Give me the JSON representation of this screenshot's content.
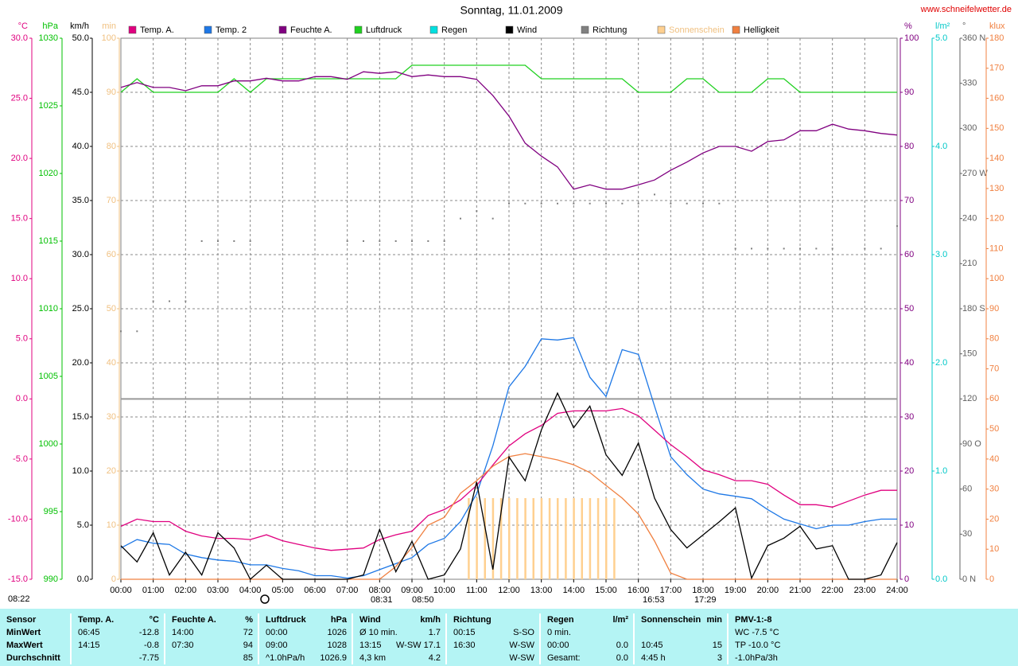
{
  "chart_data": {
    "type": "line",
    "title": "Sonntag, 11.01.2009",
    "source": "www.schneifelwetter.de",
    "grid": true,
    "xlim": [
      0,
      24
    ],
    "xticks": [
      {
        "value": 0,
        "label": "00:00"
      },
      {
        "value": 1,
        "label": "01:00"
      },
      {
        "value": 2,
        "label": "02:00"
      },
      {
        "value": 3,
        "label": "03:00"
      },
      {
        "value": 4,
        "label": "04:00"
      },
      {
        "value": 5,
        "label": "05:00"
      },
      {
        "value": 6,
        "label": "06:00"
      },
      {
        "value": 7,
        "label": "07:00"
      },
      {
        "value": 8,
        "label": "08:00"
      },
      {
        "value": 9,
        "label": "09:00"
      },
      {
        "value": 10,
        "label": "10:00"
      },
      {
        "value": 11,
        "label": "11:00"
      },
      {
        "value": 12,
        "label": "12:00"
      },
      {
        "value": 13,
        "label": "13:00"
      },
      {
        "value": 14,
        "label": "14:00"
      },
      {
        "value": 15,
        "label": "15:00"
      },
      {
        "value": 16,
        "label": "16:00"
      },
      {
        "value": 17,
        "label": "17:00"
      },
      {
        "value": 18,
        "label": "18:00"
      },
      {
        "value": 19,
        "label": "19:00"
      },
      {
        "value": 20,
        "label": "20:00"
      },
      {
        "value": 21,
        "label": "21:00"
      },
      {
        "value": 22,
        "label": "22:00"
      },
      {
        "value": 23,
        "label": "23:00"
      },
      {
        "value": 24,
        "label": "24:00"
      }
    ],
    "annotations": [
      "08:22",
      "08:31",
      "08:50",
      "16:53",
      "17:29"
    ],
    "axes": [
      {
        "label": "°C",
        "color": "#e0007f",
        "lim": [
          -15,
          30
        ],
        "zeroline": true,
        "ticks": [
          {
            "value": 30,
            "label": "30.0"
          },
          {
            "value": 25,
            "label": "25.0"
          },
          {
            "value": 20,
            "label": "20.0"
          },
          {
            "value": 15,
            "label": "15.0"
          },
          {
            "value": 10,
            "label": "10.0"
          },
          {
            "value": 5,
            "label": "5.0"
          },
          {
            "value": 0,
            "label": "0.0"
          },
          {
            "value": -5,
            "label": "-5.0"
          },
          {
            "value": -10,
            "label": "-10.0"
          },
          {
            "value": -15,
            "label": "-15.0"
          }
        ]
      },
      {
        "label": "hPa",
        "color": "#00c000",
        "lim": [
          990,
          1030
        ],
        "ticks": [
          1030,
          1025,
          1020,
          1015,
          1010,
          1005,
          1000,
          995,
          990
        ]
      },
      {
        "label": "km/h",
        "color": "#000000",
        "lim": [
          0,
          50
        ],
        "grid": true,
        "ticks": [
          {
            "value": 50,
            "label": "50.0"
          },
          {
            "value": 45,
            "label": "45.0"
          },
          {
            "value": 40,
            "label": "40.0"
          },
          {
            "value": 35,
            "label": "35.0"
          },
          {
            "value": 30,
            "label": "30.0"
          },
          {
            "value": 25,
            "label": "25.0"
          },
          {
            "value": 20,
            "label": "20.0"
          },
          {
            "value": 15,
            "label": "15.0"
          },
          {
            "value": 10,
            "label": "10.0"
          },
          {
            "value": 5,
            "label": "5.0"
          },
          {
            "value": 0,
            "label": "0.0"
          }
        ]
      },
      {
        "label": "min",
        "color": "#f0c080",
        "lim": [
          0,
          100
        ],
        "ticks": [
          100,
          90,
          80,
          70,
          60,
          50,
          40,
          30,
          20,
          10,
          0
        ]
      },
      {
        "label": "%",
        "color": "#800080",
        "lim": [
          0,
          100
        ],
        "ticks": [
          100,
          90,
          80,
          70,
          60,
          50,
          40,
          30,
          20,
          10,
          0
        ]
      },
      {
        "label": "l/m²",
        "color": "#00c8c8",
        "lim": [
          0,
          5
        ],
        "ticks": [
          {
            "value": 5,
            "label": "5.0"
          },
          {
            "value": 4,
            "label": "4.0"
          },
          {
            "value": 3,
            "label": "3.0"
          },
          {
            "value": 2,
            "label": "2.0"
          },
          {
            "value": 1,
            "label": "1.0"
          },
          {
            "value": 0,
            "label": "0.0"
          }
        ]
      },
      {
        "label": "°",
        "color": "#606060",
        "lim": [
          0,
          360
        ],
        "ticks": [
          {
            "value": 360,
            "label": "360 N"
          },
          330,
          300,
          {
            "value": 270,
            "label": "270 W"
          },
          240,
          210,
          {
            "value": 180,
            "label": "180 S"
          },
          150,
          120,
          {
            "value": 90,
            "label": "90  O"
          },
          60,
          30,
          {
            "value": 0,
            "label": "0   N"
          }
        ]
      },
      {
        "label": "klux",
        "color": "#f08040",
        "lim": [
          0,
          180
        ],
        "ticks": [
          180,
          170,
          160,
          150,
          140,
          130,
          120,
          110,
          100,
          90,
          80,
          70,
          60,
          50,
          40,
          30,
          20,
          10,
          0
        ]
      }
    ],
    "x": [
      0,
      0.5,
      1,
      1.5,
      2,
      2.5,
      3,
      3.5,
      4,
      4.5,
      5,
      5.5,
      6,
      6.5,
      7,
      7.5,
      8,
      8.5,
      9,
      9.5,
      10,
      10.5,
      11,
      11.5,
      12,
      12.5,
      13,
      13.5,
      14,
      14.5,
      15,
      15.5,
      16,
      16.5,
      17,
      17.5,
      18,
      18.5,
      19,
      19.5,
      20,
      20.5,
      21,
      21.5,
      22,
      22.5,
      23,
      23.5,
      24
    ],
    "series": [
      {
        "name": "Temp. A.",
        "color": "#e0007f",
        "axis": 0,
        "style": "line",
        "values": [
          -10.6,
          -10.0,
          -10.2,
          -10.2,
          -11.0,
          -11.4,
          -11.6,
          -11.6,
          -11.7,
          -11.3,
          -11.8,
          -12.1,
          -12.4,
          -12.6,
          -12.5,
          -12.4,
          -11.7,
          -11.3,
          -11.0,
          -9.7,
          -9.2,
          -8.4,
          -7.2,
          -5.5,
          -3.9,
          -2.9,
          -2.2,
          -1.2,
          -1.0,
          -1.0,
          -1.0,
          -0.8,
          -1.4,
          -2.6,
          -3.8,
          -4.8,
          -5.9,
          -6.3,
          -6.8,
          -6.8,
          -7.1,
          -8.0,
          -8.8,
          -8.8,
          -9.0,
          -8.5,
          -8.0,
          -7.6,
          -7.6
        ]
      },
      {
        "name": "Temp. 2",
        "color": "#1e78e6",
        "axis": 0,
        "style": "line",
        "values": [
          -12.4,
          -11.7,
          -12.0,
          -12.1,
          -12.9,
          -13.2,
          -13.4,
          -13.5,
          -13.8,
          -13.8,
          -14.1,
          -14.3,
          -14.7,
          -14.7,
          -14.9,
          -14.7,
          -14.2,
          -13.7,
          -13.2,
          -12.1,
          -11.6,
          -10.2,
          -7.9,
          -3.9,
          1.0,
          2.7,
          5.0,
          4.9,
          5.1,
          1.8,
          0.2,
          4.1,
          3.7,
          -0.6,
          -4.8,
          -6.3,
          -7.5,
          -7.9,
          -8.1,
          -8.3,
          -9.2,
          -10.0,
          -10.4,
          -10.8,
          -10.5,
          -10.5,
          -10.2,
          -10.0,
          -10.0
        ]
      },
      {
        "name": "Feuchte A.",
        "color": "#800080",
        "axis": 4,
        "style": "line",
        "values": [
          90.9,
          91.8,
          90.9,
          90.9,
          90.3,
          91.2,
          91.2,
          92.1,
          92.1,
          92.6,
          92.1,
          92.1,
          92.9,
          92.9,
          92.4,
          93.8,
          93.5,
          93.8,
          92.9,
          93.2,
          92.9,
          92.9,
          92.4,
          89.4,
          85.6,
          80.6,
          78.2,
          76.2,
          72.1,
          72.9,
          72.1,
          72.1,
          72.9,
          73.8,
          75.6,
          77.1,
          78.8,
          80.0,
          80.0,
          79.1,
          80.9,
          81.2,
          82.9,
          82.9,
          84.1,
          83.2,
          82.9,
          82.4,
          82.1
        ]
      },
      {
        "name": "Luftdruck",
        "color": "#20d020",
        "axis": 1,
        "style": "line",
        "values": [
          1026,
          1027,
          1026,
          1026,
          1026,
          1026,
          1026,
          1027,
          1026,
          1027,
          1027,
          1027,
          1027,
          1027,
          1027,
          1027,
          1027,
          1027,
          1028,
          1028,
          1028,
          1028,
          1028,
          1028,
          1028,
          1028,
          1027,
          1027,
          1027,
          1027,
          1027,
          1027,
          1026,
          1026,
          1026,
          1027,
          1027,
          1026,
          1026,
          1026,
          1027,
          1027,
          1026,
          1026,
          1026,
          1026,
          1026,
          1026,
          1026
        ]
      },
      {
        "name": "Regen",
        "color": "#00e0e0",
        "axis": 5
      },
      {
        "name": "Wind",
        "color": "#000000",
        "axis": 2,
        "style": "line",
        "values": [
          3.1,
          1.6,
          4.3,
          0.4,
          2.5,
          0.4,
          4.3,
          2.9,
          0,
          1.3,
          0,
          0,
          0,
          0,
          0,
          0.4,
          4.6,
          0.7,
          3.5,
          0,
          0.4,
          2.8,
          9.0,
          0.9,
          11.3,
          9.1,
          13.8,
          17.2,
          14.0,
          16.0,
          11.5,
          9.6,
          12.6,
          7.5,
          4.6,
          2.9,
          4.1,
          5.3,
          6.6,
          0.1,
          3.1,
          3.8,
          4.9,
          2.8,
          3.1,
          0,
          0,
          0.4,
          3.4
        ]
      },
      {
        "name": "Richtung",
        "color": "#808080",
        "axis": 6,
        "style": "dots",
        "values": [
          165,
          165,
          185,
          185,
          185,
          225,
          225,
          225,
          225,
          null,
          null,
          null,
          null,
          null,
          225,
          225,
          225,
          225,
          225,
          225,
          225,
          240,
          245,
          240,
          250,
          250,
          250,
          250,
          250,
          250,
          250,
          250,
          250,
          256,
          250,
          250,
          250,
          250,
          220,
          220,
          220,
          220,
          220,
          220,
          220,
          null,
          220,
          220,
          235
        ]
      },
      {
        "name": "Sonnenschein",
        "color": "#ffd090",
        "axis": 3,
        "style": "bars",
        "x": [
          10.75,
          11,
          11.25,
          11.5,
          11.75,
          12,
          12.25,
          12.5,
          12.75,
          13,
          13.25,
          13.5,
          13.75,
          14,
          14.25,
          14.5,
          14.75,
          15,
          15.25
        ],
        "values": [
          15,
          15,
          15,
          15,
          15,
          15,
          15,
          15,
          15,
          15,
          15,
          15,
          15,
          15,
          15,
          15,
          15,
          15,
          15
        ]
      },
      {
        "name": "Helligkeit",
        "color": "#f08040",
        "axis": 7,
        "style": "line",
        "values": [
          0,
          0,
          0,
          0,
          0,
          0,
          0,
          0,
          0,
          0,
          0,
          0,
          0,
          0,
          0,
          0,
          0,
          4.2,
          10.6,
          18.0,
          20.6,
          28.6,
          32.8,
          37.6,
          40.8,
          41.8,
          40.8,
          39.7,
          38.1,
          35.5,
          31.2,
          27.0,
          21.7,
          12.7,
          2.1,
          0,
          0,
          0,
          0,
          0,
          0,
          0,
          0,
          0,
          0,
          0,
          0,
          0,
          0
        ]
      }
    ]
  },
  "table": {
    "rows": [
      [
        {
          "left": "Sensor"
        },
        {
          "left": "Temp. A.",
          "right": "°C"
        },
        {
          "left": "Feuchte A.",
          "right": "%"
        },
        {
          "left": "Luftdruck",
          "right": "hPa"
        },
        {
          "left": "Wind",
          "right": "km/h"
        },
        {
          "left": "Richtung"
        },
        {
          "left": "Regen",
          "right": "l/m²"
        },
        {
          "left": "Sonnenschein",
          "right": "min"
        },
        {
          "left": "PMV-1:-8"
        }
      ],
      [
        {
          "left": "MinWert"
        },
        {
          "left": "06:45",
          "right": "-12.8"
        },
        {
          "left": "14:00",
          "right": "72"
        },
        {
          "left": "00:00",
          "right": "1026"
        },
        {
          "left": "Ø 10 min.",
          "right": "1.7"
        },
        {
          "left": "00:15",
          "right": "S-SO"
        },
        {
          "left": "0 min."
        },
        {},
        {
          "left": "WC -7.5 °C"
        }
      ],
      [
        {
          "left": "MaxWert"
        },
        {
          "left": "14:15",
          "right": "-0.8"
        },
        {
          "left": "07:30",
          "right": "94"
        },
        {
          "left": "09:00",
          "right": "1028"
        },
        {
          "left": "13:15",
          "right": "W-SW 17.1"
        },
        {
          "left": "16:30",
          "right": "W-SW"
        },
        {
          "left": "00:00",
          "right": "0.0"
        },
        {
          "left": "10:45",
          "right": "15"
        },
        {
          "left": "TP -10.0 °C"
        }
      ],
      [
        {
          "left": "Durchschnitt"
        },
        {
          "right": "-7.75"
        },
        {
          "right": "85"
        },
        {
          "left": "^1.0hPa/h",
          "right": "1026.9"
        },
        {
          "left": "4,3 km",
          "right": "4.2"
        },
        {
          "right": "W-SW"
        },
        {
          "left": "Gesamt:",
          "right": "0.0"
        },
        {
          "left": "4:45 h",
          "right": "3"
        },
        {
          "left": "-1.0hPa/3h"
        }
      ]
    ]
  }
}
